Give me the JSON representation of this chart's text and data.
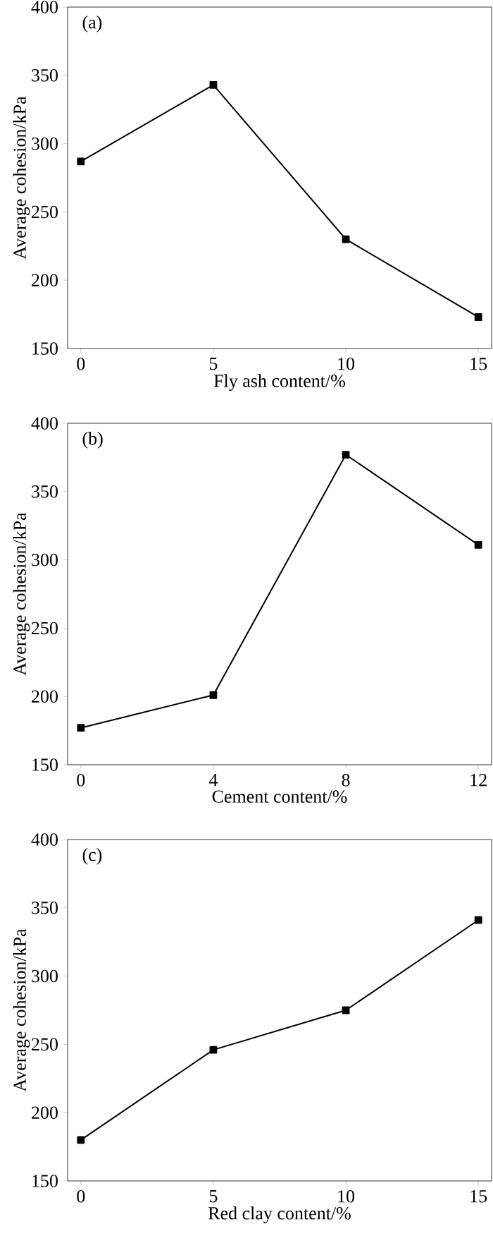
{
  "chart_data": [
    {
      "type": "line",
      "x": [
        0,
        5,
        10,
        15
      ],
      "values": [
        287,
        343,
        230,
        173
      ],
      "color": "#000000",
      "marker": "square",
      "line_style": "solid",
      "xlim": [
        -0.5,
        15.5
      ],
      "xticks": [
        0,
        5,
        10,
        15
      ],
      "ylim": [
        150,
        400
      ],
      "yticks": [
        150,
        200,
        250,
        300,
        350,
        400
      ],
      "xlabel": "Fly ash content/%",
      "ylabel": "Average cohesion/kPa",
      "annotations": [
        "(a)"
      ]
    },
    {
      "type": "line",
      "x": [
        0,
        4,
        8,
        12
      ],
      "values": [
        177,
        201,
        377,
        311
      ],
      "color": "#000000",
      "marker": "square",
      "line_style": "solid",
      "xlim": [
        -0.4,
        12.4
      ],
      "xticks": [
        0,
        4,
        8,
        12
      ],
      "ylim": [
        150,
        400
      ],
      "yticks": [
        150,
        200,
        250,
        300,
        350,
        400
      ],
      "xlabel": "Cement content/%",
      "ylabel": "Average cohesion/kPa",
      "annotations": [
        "(b)"
      ]
    },
    {
      "type": "line",
      "x": [
        0,
        5,
        10,
        15
      ],
      "values": [
        180,
        246,
        275,
        341
      ],
      "color": "#000000",
      "marker": "square",
      "line_style": "solid",
      "xlim": [
        -0.5,
        15.5
      ],
      "xticks": [
        0,
        5,
        10,
        15
      ],
      "ylim": [
        150,
        400
      ],
      "yticks": [
        150,
        200,
        250,
        300,
        350,
        400
      ],
      "xlabel": "Red clay content/%",
      "ylabel": "Average cohesion/kPa",
      "annotations": [
        "(c)"
      ]
    }
  ]
}
